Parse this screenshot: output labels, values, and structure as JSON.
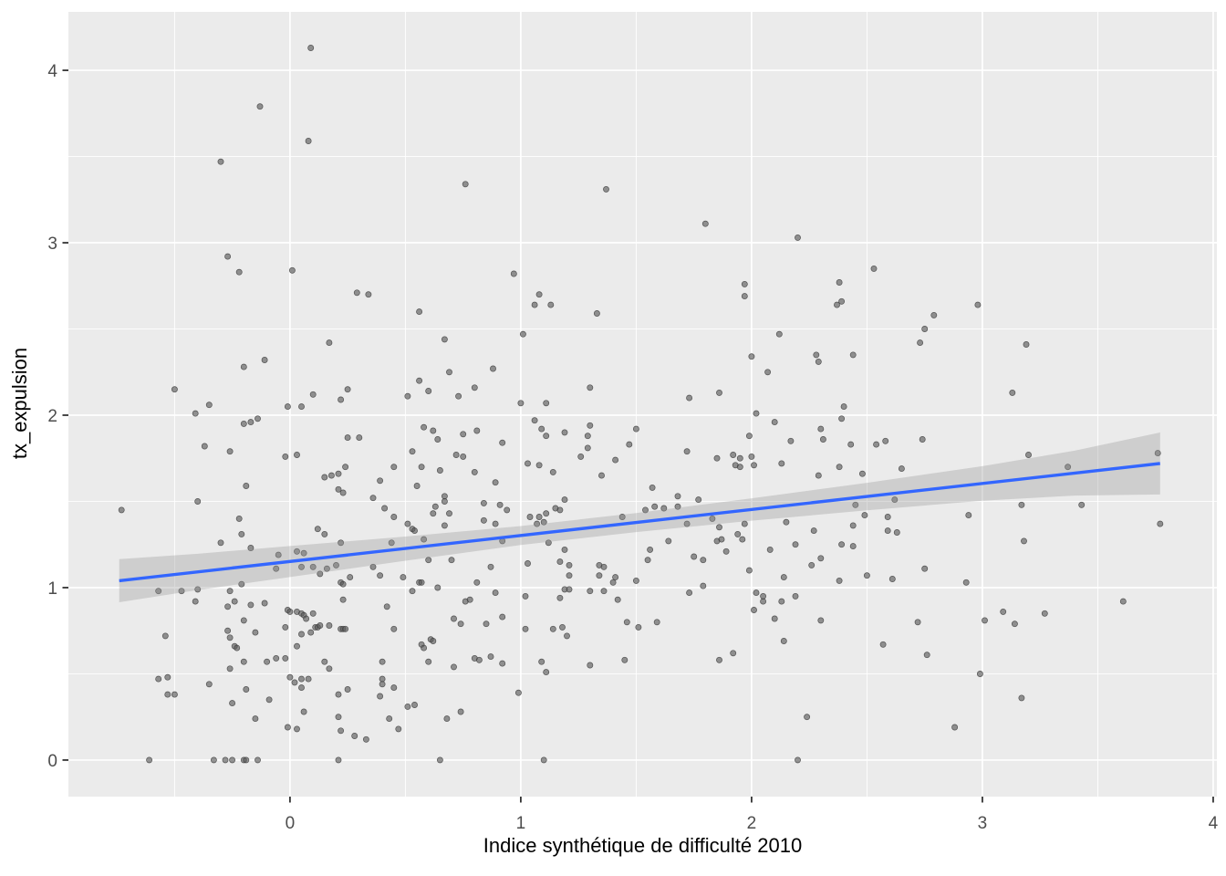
{
  "chart_data": {
    "type": "scatter",
    "title": "",
    "xlabel": "Indice synthétique de difficulté 2010",
    "ylabel": "tx_expulsion",
    "xlim": [
      -0.96,
      4.016
    ],
    "ylim": [
      -0.212,
      4.339
    ],
    "xticks": [
      0,
      1,
      2,
      3,
      4
    ],
    "yticks": [
      0,
      1,
      2,
      3,
      4
    ],
    "x_tick_labels": [
      "0",
      "1",
      "2",
      "3",
      "4"
    ],
    "y_tick_labels": [
      "0",
      "1",
      "2",
      "3",
      "4"
    ],
    "grid": true,
    "legend": "none",
    "style": {
      "panel_bg": "#EBEBEB",
      "grid_color": "#FFFFFF",
      "grid_major_width": 1.7,
      "grid_minor_width": 0.9,
      "tick_color": "#333333",
      "tick_label_color": "#4D4D4D",
      "tick_label_size": 19,
      "point": {
        "radius": 3.1,
        "fill": "#555555",
        "fill_opacity": 0.62,
        "stroke": "#3a3a3a",
        "stroke_opacity": 0.8,
        "stroke_width": 0.7
      }
    },
    "smooth": {
      "method": "lm",
      "color": "#3366FF",
      "width": 3.4,
      "x": [
        -0.74,
        3.77
      ],
      "y": [
        1.04,
        1.72
      ],
      "band": {
        "fill": "#999999",
        "opacity": 0.35,
        "x": [
          -0.74,
          -0.4,
          0.0,
          0.5,
          1.0,
          1.5,
          2.0,
          2.5,
          3.0,
          3.4,
          3.77
        ],
        "upper": [
          1.165,
          1.196,
          1.241,
          1.296,
          1.357,
          1.432,
          1.518,
          1.608,
          1.704,
          1.794,
          1.9
        ],
        "lower": [
          0.915,
          0.986,
          1.061,
          1.156,
          1.247,
          1.322,
          1.388,
          1.448,
          1.504,
          1.534,
          1.54
        ]
      }
    },
    "points": [
      [
        0.09,
        4.13
      ],
      [
        -0.13,
        3.79
      ],
      [
        0.08,
        3.59
      ],
      [
        -0.3,
        3.47
      ],
      [
        -0.27,
        2.92
      ],
      [
        0.01,
        2.84
      ],
      [
        -0.22,
        2.83
      ],
      [
        0.76,
        3.34
      ],
      [
        1.37,
        3.31
      ],
      [
        0.97,
        2.82
      ],
      [
        1.8,
        3.11
      ],
      [
        2.2,
        3.03
      ],
      [
        2.53,
        2.85
      ],
      [
        0.29,
        2.71
      ],
      [
        0.17,
        2.42
      ],
      [
        -0.11,
        2.32
      ],
      [
        -0.2,
        2.28
      ],
      [
        -0.5,
        2.15
      ],
      [
        0.25,
        2.15
      ],
      [
        0.1,
        2.12
      ],
      [
        0.22,
        2.09
      ],
      [
        -0.35,
        2.06
      ],
      [
        -0.01,
        2.05
      ],
      [
        0.05,
        2.05
      ],
      [
        -0.41,
        2.01
      ],
      [
        -0.14,
        1.98
      ],
      [
        -0.17,
        1.96
      ],
      [
        -0.2,
        1.95
      ],
      [
        0.25,
        1.87
      ],
      [
        0.3,
        1.87
      ],
      [
        -0.37,
        1.82
      ],
      [
        -0.26,
        1.79
      ],
      [
        -0.02,
        1.76
      ],
      [
        0.03,
        1.77
      ],
      [
        0.24,
        1.7
      ],
      [
        0.15,
        1.64
      ],
      [
        0.18,
        1.65
      ],
      [
        0.21,
        1.66
      ],
      [
        0.21,
        1.57
      ],
      [
        0.23,
        1.55
      ],
      [
        -0.19,
        1.59
      ],
      [
        -0.4,
        1.5
      ],
      [
        -0.73,
        1.45
      ],
      [
        -0.22,
        1.4
      ],
      [
        -0.21,
        1.31
      ],
      [
        0.12,
        1.34
      ],
      [
        0.15,
        1.31
      ],
      [
        0.34,
        2.7
      ],
      [
        1.08,
        2.7
      ],
      [
        1.06,
        2.64
      ],
      [
        1.13,
        2.64
      ],
      [
        0.56,
        2.6
      ],
      [
        1.33,
        2.59
      ],
      [
        1.01,
        2.47
      ],
      [
        0.67,
        2.44
      ],
      [
        0.88,
        2.27
      ],
      [
        0.69,
        2.25
      ],
      [
        0.56,
        2.2
      ],
      [
        0.8,
        2.16
      ],
      [
        0.6,
        2.14
      ],
      [
        0.51,
        2.11
      ],
      [
        0.73,
        2.11
      ],
      [
        1.0,
        2.07
      ],
      [
        1.11,
        2.07
      ],
      [
        1.3,
        2.16
      ],
      [
        1.06,
        1.97
      ],
      [
        0.58,
        1.93
      ],
      [
        0.62,
        1.91
      ],
      [
        1.09,
        1.92
      ],
      [
        0.81,
        1.91
      ],
      [
        1.11,
        1.88
      ],
      [
        1.19,
        1.9
      ],
      [
        0.75,
        1.89
      ],
      [
        0.64,
        1.86
      ],
      [
        1.3,
        1.94
      ],
      [
        1.29,
        1.88
      ],
      [
        1.5,
        1.92
      ],
      [
        0.92,
        1.84
      ],
      [
        1.47,
        1.83
      ],
      [
        0.53,
        1.79
      ],
      [
        1.29,
        1.81
      ],
      [
        0.72,
        1.77
      ],
      [
        0.75,
        1.76
      ],
      [
        1.26,
        1.76
      ],
      [
        0.45,
        1.7
      ],
      [
        1.41,
        1.74
      ],
      [
        0.57,
        1.7
      ],
      [
        1.03,
        1.72
      ],
      [
        1.08,
        1.71
      ],
      [
        0.65,
        1.68
      ],
      [
        1.14,
        1.67
      ],
      [
        0.39,
        1.62
      ],
      [
        0.8,
        1.67
      ],
      [
        1.35,
        1.65
      ],
      [
        0.55,
        1.59
      ],
      [
        0.89,
        1.61
      ],
      [
        0.36,
        1.52
      ],
      [
        0.67,
        1.53
      ],
      [
        0.67,
        1.5
      ],
      [
        0.41,
        1.46
      ],
      [
        0.63,
        1.47
      ],
      [
        0.62,
        1.43
      ],
      [
        1.19,
        1.51
      ],
      [
        1.15,
        1.46
      ],
      [
        1.17,
        1.45
      ],
      [
        0.45,
        1.41
      ],
      [
        0.69,
        1.43
      ],
      [
        0.84,
        1.49
      ],
      [
        0.91,
        1.48
      ],
      [
        0.94,
        1.45
      ],
      [
        1.04,
        1.41
      ],
      [
        1.08,
        1.41
      ],
      [
        1.11,
        1.43
      ],
      [
        0.51,
        1.37
      ],
      [
        0.53,
        1.34
      ],
      [
        0.54,
        1.33
      ],
      [
        0.67,
        1.36
      ],
      [
        0.84,
        1.39
      ],
      [
        0.89,
        1.37
      ],
      [
        1.07,
        1.37
      ],
      [
        1.1,
        1.38
      ],
      [
        1.44,
        1.41
      ],
      [
        1.54,
        1.45
      ],
      [
        1.97,
        2.76
      ],
      [
        2.38,
        2.77
      ],
      [
        1.97,
        2.69
      ],
      [
        2.37,
        2.64
      ],
      [
        2.39,
        2.66
      ],
      [
        2.79,
        2.58
      ],
      [
        2.75,
        2.5
      ],
      [
        2.12,
        2.47
      ],
      [
        2.73,
        2.42
      ],
      [
        2.0,
        2.34
      ],
      [
        2.28,
        2.35
      ],
      [
        2.29,
        2.31
      ],
      [
        2.44,
        2.35
      ],
      [
        2.07,
        2.25
      ],
      [
        1.86,
        2.13
      ],
      [
        1.73,
        2.1
      ],
      [
        2.4,
        2.05
      ],
      [
        2.02,
        2.01
      ],
      [
        2.39,
        1.98
      ],
      [
        2.1,
        1.96
      ],
      [
        2.3,
        1.92
      ],
      [
        2.31,
        1.86
      ],
      [
        1.99,
        1.88
      ],
      [
        2.17,
        1.85
      ],
      [
        2.43,
        1.83
      ],
      [
        2.74,
        1.86
      ],
      [
        2.54,
        1.83
      ],
      [
        2.58,
        1.85
      ],
      [
        1.72,
        1.79
      ],
      [
        1.85,
        1.75
      ],
      [
        1.92,
        1.77
      ],
      [
        1.95,
        1.75
      ],
      [
        2.0,
        1.76
      ],
      [
        1.93,
        1.71
      ],
      [
        1.95,
        1.7
      ],
      [
        2.01,
        1.71
      ],
      [
        2.13,
        1.72
      ],
      [
        2.38,
        1.7
      ],
      [
        2.65,
        1.69
      ],
      [
        2.48,
        1.66
      ],
      [
        2.29,
        1.65
      ],
      [
        1.57,
        1.58
      ],
      [
        1.68,
        1.53
      ],
      [
        1.77,
        1.51
      ],
      [
        1.58,
        1.47
      ],
      [
        1.62,
        1.46
      ],
      [
        1.68,
        1.47
      ],
      [
        2.62,
        1.51
      ],
      [
        2.45,
        1.48
      ],
      [
        1.72,
        1.37
      ],
      [
        1.83,
        1.4
      ],
      [
        1.86,
        1.35
      ],
      [
        1.97,
        1.37
      ],
      [
        2.15,
        1.38
      ],
      [
        2.27,
        1.33
      ],
      [
        2.44,
        1.36
      ],
      [
        2.49,
        1.42
      ],
      [
        2.59,
        1.41
      ],
      [
        1.94,
        1.31
      ],
      [
        2.59,
        1.33
      ],
      [
        2.63,
        1.32
      ],
      [
        2.98,
        2.64
      ],
      [
        3.19,
        2.41
      ],
      [
        3.13,
        2.13
      ],
      [
        3.2,
        1.77
      ],
      [
        3.37,
        1.7
      ],
      [
        3.76,
        1.78
      ],
      [
        3.17,
        1.48
      ],
      [
        3.43,
        1.48
      ],
      [
        2.94,
        1.42
      ],
      [
        3.77,
        1.37
      ],
      [
        -0.3,
        1.26
      ],
      [
        -0.17,
        1.23
      ],
      [
        -0.05,
        1.19
      ],
      [
        0.22,
        1.26
      ],
      [
        0.03,
        1.21
      ],
      [
        0.06,
        1.2
      ],
      [
        -0.06,
        1.11
      ],
      [
        0.05,
        1.12
      ],
      [
        0.1,
        1.12
      ],
      [
        0.13,
        1.08
      ],
      [
        0.16,
        1.11
      ],
      [
        0.2,
        1.13
      ],
      [
        0.26,
        1.06
      ],
      [
        0.22,
        1.03
      ],
      [
        0.23,
        1.02
      ],
      [
        -0.21,
        1.02
      ],
      [
        -0.57,
        0.98
      ],
      [
        -0.47,
        0.98
      ],
      [
        -0.4,
        0.99
      ],
      [
        -0.26,
        0.98
      ],
      [
        -0.41,
        0.92
      ],
      [
        0.23,
        0.93
      ],
      [
        -0.27,
        0.89
      ],
      [
        -0.24,
        0.92
      ],
      [
        -0.17,
        0.9
      ],
      [
        -0.11,
        0.91
      ],
      [
        -0.01,
        0.87
      ],
      [
        0.0,
        0.86
      ],
      [
        0.03,
        0.86
      ],
      [
        0.05,
        0.85
      ],
      [
        0.06,
        0.84
      ],
      [
        0.07,
        0.82
      ],
      [
        0.1,
        0.85
      ],
      [
        -0.2,
        0.81
      ],
      [
        0.11,
        0.77
      ],
      [
        0.12,
        0.77
      ],
      [
        0.13,
        0.78
      ],
      [
        0.17,
        0.78
      ],
      [
        0.22,
        0.76
      ],
      [
        0.23,
        0.76
      ],
      [
        0.24,
        0.76
      ],
      [
        -0.02,
        0.77
      ],
      [
        -0.27,
        0.75
      ],
      [
        0.05,
        0.73
      ],
      [
        0.09,
        0.74
      ],
      [
        -0.54,
        0.72
      ],
      [
        -0.26,
        0.71
      ],
      [
        -0.15,
        0.74
      ],
      [
        -0.24,
        0.66
      ],
      [
        -0.23,
        0.65
      ],
      [
        0.03,
        0.66
      ],
      [
        -0.2,
        0.57
      ],
      [
        -0.1,
        0.57
      ],
      [
        -0.06,
        0.59
      ],
      [
        -0.02,
        0.59
      ],
      [
        0.15,
        0.57
      ],
      [
        0.17,
        0.53
      ],
      [
        -0.26,
        0.53
      ],
      [
        -0.57,
        0.47
      ],
      [
        -0.53,
        0.48
      ],
      [
        0.0,
        0.48
      ],
      [
        0.02,
        0.45
      ],
      [
        0.05,
        0.47
      ],
      [
        0.08,
        0.47
      ],
      [
        -0.35,
        0.44
      ],
      [
        0.05,
        0.42
      ],
      [
        -0.19,
        0.41
      ],
      [
        -0.53,
        0.38
      ],
      [
        -0.5,
        0.38
      ],
      [
        -0.09,
        0.35
      ],
      [
        0.25,
        0.41
      ],
      [
        0.21,
        0.38
      ],
      [
        -0.25,
        0.33
      ],
      [
        0.06,
        0.28
      ],
      [
        -0.15,
        0.24
      ],
      [
        0.21,
        0.25
      ],
      [
        -0.01,
        0.19
      ],
      [
        0.03,
        0.18
      ],
      [
        0.22,
        0.17
      ],
      [
        0.28,
        0.14
      ],
      [
        -0.61,
        0.0
      ],
      [
        -0.33,
        0.0
      ],
      [
        -0.28,
        0.0
      ],
      [
        -0.25,
        0.0
      ],
      [
        -0.2,
        0.0
      ],
      [
        -0.19,
        0.0
      ],
      [
        -0.14,
        0.0
      ],
      [
        0.21,
        0.0
      ],
      [
        0.44,
        1.26
      ],
      [
        0.58,
        1.28
      ],
      [
        0.92,
        1.27
      ],
      [
        1.12,
        1.26
      ],
      [
        1.19,
        1.22
      ],
      [
        1.56,
        1.22
      ],
      [
        1.55,
        1.16
      ],
      [
        0.36,
        1.12
      ],
      [
        0.6,
        1.16
      ],
      [
        0.7,
        1.16
      ],
      [
        0.87,
        1.12
      ],
      [
        1.03,
        1.14
      ],
      [
        1.17,
        1.15
      ],
      [
        1.21,
        1.13
      ],
      [
        1.21,
        1.07
      ],
      [
        1.34,
        1.13
      ],
      [
        1.36,
        1.12
      ],
      [
        1.34,
        1.07
      ],
      [
        1.4,
        1.03
      ],
      [
        1.41,
        1.06
      ],
      [
        1.5,
        1.04
      ],
      [
        0.39,
        1.07
      ],
      [
        0.49,
        1.06
      ],
      [
        0.56,
        1.03
      ],
      [
        0.57,
        1.03
      ],
      [
        0.64,
        1.0
      ],
      [
        0.53,
        0.98
      ],
      [
        0.81,
        1.03
      ],
      [
        0.89,
        0.97
      ],
      [
        1.19,
        0.99
      ],
      [
        1.21,
        0.99
      ],
      [
        1.3,
        0.98
      ],
      [
        1.36,
        0.98
      ],
      [
        1.02,
        0.95
      ],
      [
        1.17,
        0.94
      ],
      [
        1.42,
        0.93
      ],
      [
        0.76,
        0.92
      ],
      [
        0.78,
        0.93
      ],
      [
        0.42,
        0.89
      ],
      [
        0.71,
        0.82
      ],
      [
        0.74,
        0.79
      ],
      [
        0.92,
        0.83
      ],
      [
        0.85,
        0.79
      ],
      [
        1.46,
        0.8
      ],
      [
        1.51,
        0.77
      ],
      [
        0.45,
        0.76
      ],
      [
        1.02,
        0.76
      ],
      [
        1.14,
        0.76
      ],
      [
        1.18,
        0.77
      ],
      [
        1.2,
        0.72
      ],
      [
        0.61,
        0.7
      ],
      [
        0.62,
        0.69
      ],
      [
        0.57,
        0.67
      ],
      [
        0.58,
        0.65
      ],
      [
        0.8,
        0.59
      ],
      [
        0.82,
        0.58
      ],
      [
        0.87,
        0.6
      ],
      [
        0.6,
        0.57
      ],
      [
        0.71,
        0.54
      ],
      [
        0.92,
        0.56
      ],
      [
        0.4,
        0.57
      ],
      [
        1.09,
        0.57
      ],
      [
        1.45,
        0.58
      ],
      [
        1.3,
        0.55
      ],
      [
        1.11,
        0.51
      ],
      [
        0.4,
        0.47
      ],
      [
        0.4,
        0.44
      ],
      [
        0.45,
        0.42
      ],
      [
        0.39,
        0.37
      ],
      [
        0.99,
        0.39
      ],
      [
        0.51,
        0.31
      ],
      [
        0.54,
        0.32
      ],
      [
        0.74,
        0.28
      ],
      [
        0.68,
        0.24
      ],
      [
        0.43,
        0.24
      ],
      [
        0.47,
        0.18
      ],
      [
        0.33,
        0.12
      ],
      [
        0.65,
        0.0
      ],
      [
        1.1,
        0.0
      ],
      [
        1.64,
        1.27
      ],
      [
        1.85,
        1.27
      ],
      [
        1.87,
        1.28
      ],
      [
        1.96,
        1.28
      ],
      [
        2.08,
        1.22
      ],
      [
        2.19,
        1.25
      ],
      [
        2.39,
        1.25
      ],
      [
        2.44,
        1.24
      ],
      [
        1.75,
        1.18
      ],
      [
        1.79,
        1.16
      ],
      [
        1.89,
        1.21
      ],
      [
        2.3,
        1.17
      ],
      [
        2.26,
        1.13
      ],
      [
        1.99,
        1.1
      ],
      [
        2.14,
        1.06
      ],
      [
        2.75,
        1.11
      ],
      [
        2.5,
        1.07
      ],
      [
        2.61,
        1.05
      ],
      [
        2.38,
        1.04
      ],
      [
        1.79,
        1.01
      ],
      [
        1.73,
        0.97
      ],
      [
        2.02,
        0.97
      ],
      [
        2.05,
        0.95
      ],
      [
        2.05,
        0.92
      ],
      [
        2.13,
        0.92
      ],
      [
        2.19,
        0.95
      ],
      [
        2.01,
        0.87
      ],
      [
        1.59,
        0.8
      ],
      [
        2.1,
        0.82
      ],
      [
        2.3,
        0.81
      ],
      [
        2.72,
        0.8
      ],
      [
        2.14,
        0.69
      ],
      [
        2.57,
        0.67
      ],
      [
        2.76,
        0.61
      ],
      [
        1.92,
        0.62
      ],
      [
        1.86,
        0.58
      ],
      [
        2.24,
        0.25
      ],
      [
        2.2,
        0.0
      ],
      [
        3.18,
        1.27
      ],
      [
        2.93,
        1.03
      ],
      [
        3.61,
        0.92
      ],
      [
        3.09,
        0.86
      ],
      [
        3.27,
        0.85
      ],
      [
        3.01,
        0.81
      ],
      [
        3.14,
        0.79
      ],
      [
        2.99,
        0.5
      ],
      [
        3.17,
        0.36
      ],
      [
        2.88,
        0.19
      ]
    ]
  }
}
